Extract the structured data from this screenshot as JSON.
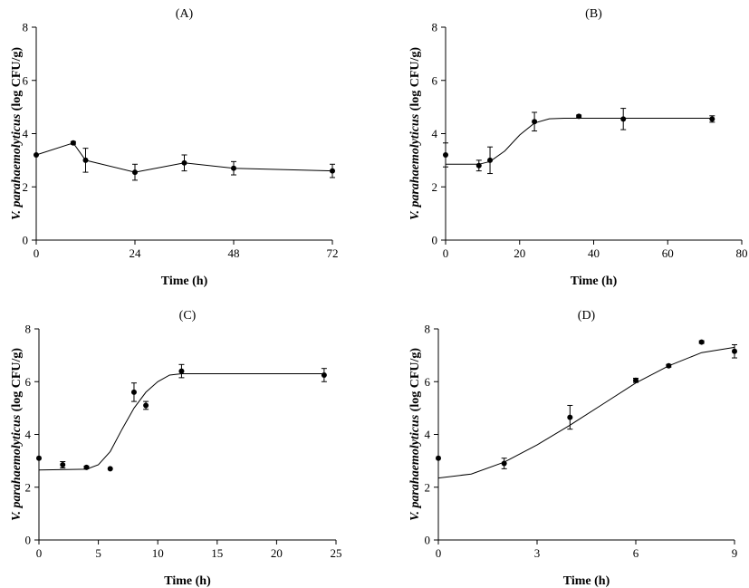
{
  "chart_data": [
    {
      "type": "scatter",
      "panel": "(A)",
      "xlabel": "Time (h)",
      "ylabel_italic": "V. parahaemolyticus",
      "ylabel_rest": " (log CFU/g)",
      "xlim": [
        0,
        72
      ],
      "ylim": [
        0,
        8
      ],
      "xticks": [
        0,
        24,
        48,
        72
      ],
      "yticks": [
        0,
        2,
        4,
        6,
        8
      ],
      "points": [
        {
          "x": 0,
          "y": 3.2,
          "err": 0
        },
        {
          "x": 9,
          "y": 3.65,
          "err": 0.05
        },
        {
          "x": 12,
          "y": 3.0,
          "err": 0.45
        },
        {
          "x": 24,
          "y": 2.55,
          "err": 0.3
        },
        {
          "x": 36,
          "y": 2.9,
          "err": 0.3
        },
        {
          "x": 48,
          "y": 2.7,
          "err": 0.25
        },
        {
          "x": 72,
          "y": 2.6,
          "err": 0.25
        }
      ],
      "fit": [
        [
          0,
          3.2
        ],
        [
          9,
          3.65
        ],
        [
          12,
          3.0
        ],
        [
          24,
          2.55
        ],
        [
          36,
          2.9
        ],
        [
          48,
          2.7
        ],
        [
          72,
          2.6
        ]
      ]
    },
    {
      "type": "scatter",
      "panel": "(B)",
      "xlabel": "Time (h)",
      "ylabel_italic": "V. parahaemolyticus",
      "ylabel_rest": " (log CFU/g)",
      "xlim": [
        0,
        80
      ],
      "ylim": [
        0,
        8
      ],
      "xticks": [
        0,
        20,
        40,
        60,
        80
      ],
      "yticks": [
        0,
        2,
        4,
        6,
        8
      ],
      "points": [
        {
          "x": 0,
          "y": 3.2,
          "err": 0.45
        },
        {
          "x": 9,
          "y": 2.8,
          "err": 0.2
        },
        {
          "x": 12,
          "y": 3.0,
          "err": 0.5
        },
        {
          "x": 24,
          "y": 4.45,
          "err": 0.35
        },
        {
          "x": 36,
          "y": 4.65,
          "err": 0.05
        },
        {
          "x": 48,
          "y": 4.55,
          "err": 0.4
        },
        {
          "x": 72,
          "y": 4.55,
          "err": 0.12
        }
      ],
      "fit": [
        [
          0,
          2.85
        ],
        [
          9,
          2.85
        ],
        [
          12,
          2.95
        ],
        [
          16,
          3.35
        ],
        [
          20,
          3.95
        ],
        [
          24,
          4.4
        ],
        [
          28,
          4.56
        ],
        [
          32,
          4.58
        ],
        [
          72,
          4.58
        ]
      ]
    },
    {
      "type": "scatter",
      "panel": "(C)",
      "xlabel": "Time (h)",
      "ylabel_italic": "V. parahaemolyticus",
      "ylabel_rest": " (log CFU/g)",
      "xlim": [
        0,
        25
      ],
      "ylim": [
        0,
        8
      ],
      "xticks": [
        0,
        5,
        10,
        15,
        20,
        25
      ],
      "yticks": [
        0,
        2,
        4,
        6,
        8
      ],
      "points": [
        {
          "x": 0,
          "y": 3.1,
          "err": 0
        },
        {
          "x": 2,
          "y": 2.85,
          "err": 0.12
        },
        {
          "x": 4,
          "y": 2.75,
          "err": 0.05
        },
        {
          "x": 6,
          "y": 2.7,
          "err": 0
        },
        {
          "x": 8,
          "y": 5.6,
          "err": 0.35
        },
        {
          "x": 9,
          "y": 5.1,
          "err": 0.15
        },
        {
          "x": 12,
          "y": 6.4,
          "err": 0.25
        },
        {
          "x": 24,
          "y": 6.25,
          "err": 0.25
        }
      ],
      "fit": [
        [
          0,
          2.65
        ],
        [
          4,
          2.68
        ],
        [
          5,
          2.85
        ],
        [
          6,
          3.35
        ],
        [
          7,
          4.2
        ],
        [
          8,
          5.0
        ],
        [
          9,
          5.6
        ],
        [
          10,
          6.0
        ],
        [
          11,
          6.25
        ],
        [
          12,
          6.3
        ],
        [
          24,
          6.3
        ]
      ]
    },
    {
      "type": "scatter",
      "panel": "(D)",
      "xlabel": "Time (h)",
      "ylabel_italic": "V. parahaemolyticus",
      "ylabel_rest": " (log CFU/g)",
      "xlim": [
        0,
        9
      ],
      "ylim": [
        0,
        8
      ],
      "xticks": [
        0,
        3,
        6,
        9
      ],
      "yticks": [
        0,
        2,
        4,
        6,
        8
      ],
      "points": [
        {
          "x": 0,
          "y": 3.1,
          "err": 0
        },
        {
          "x": 2,
          "y": 2.9,
          "err": 0.2
        },
        {
          "x": 4,
          "y": 4.65,
          "err": 0.45
        },
        {
          "x": 6,
          "y": 6.05,
          "err": 0.08
        },
        {
          "x": 7,
          "y": 6.6,
          "err": 0.05
        },
        {
          "x": 8,
          "y": 7.5,
          "err": 0.05
        },
        {
          "x": 9,
          "y": 7.15,
          "err": 0.25
        }
      ],
      "fit": [
        [
          0,
          2.35
        ],
        [
          1,
          2.5
        ],
        [
          2,
          2.95
        ],
        [
          3,
          3.6
        ],
        [
          4,
          4.35
        ],
        [
          5,
          5.15
        ],
        [
          6,
          5.95
        ],
        [
          7,
          6.6
        ],
        [
          8,
          7.1
        ],
        [
          9,
          7.3
        ]
      ]
    }
  ]
}
